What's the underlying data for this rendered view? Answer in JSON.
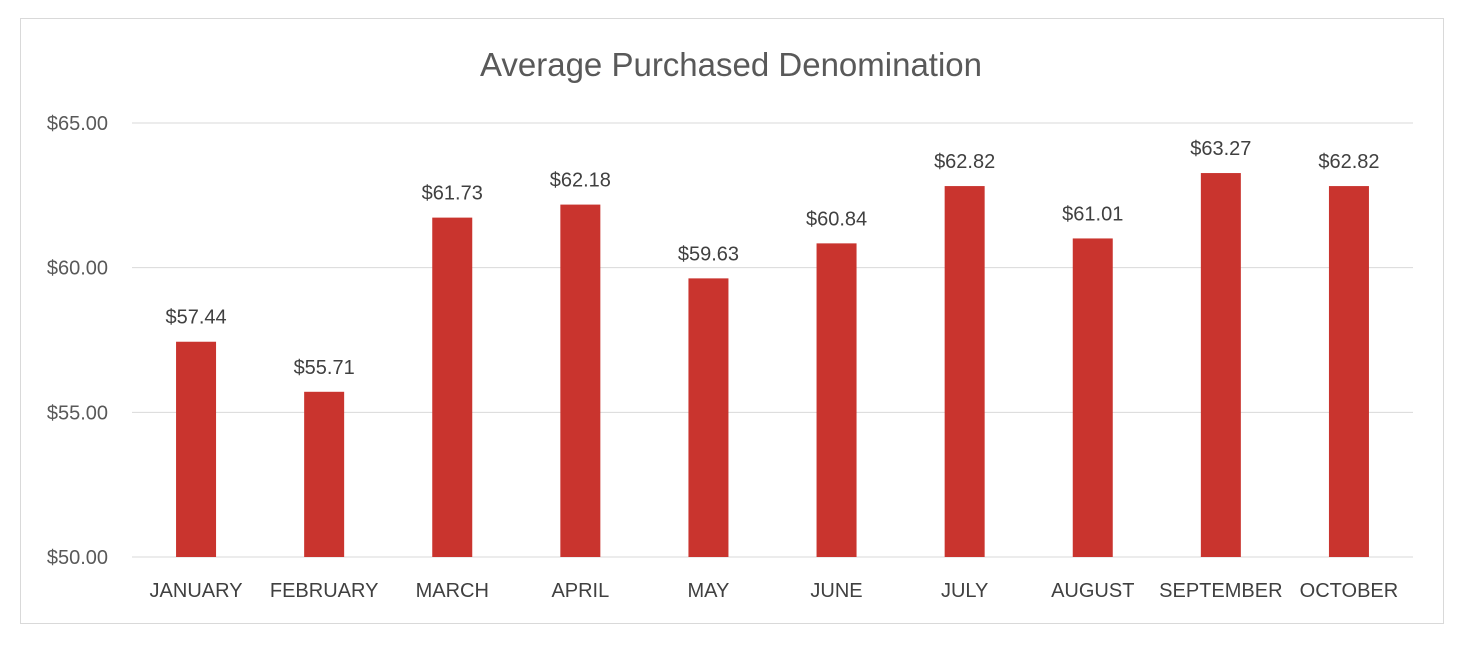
{
  "chart_data": {
    "type": "bar",
    "title": "Average Purchased Denomination",
    "xlabel": "",
    "ylabel": "",
    "categories": [
      "JANUARY",
      "FEBRUARY",
      "MARCH",
      "APRIL",
      "MAY",
      "JUNE",
      "JULY",
      "AUGUST",
      "SEPTEMBER",
      "OCTOBER"
    ],
    "values": [
      57.44,
      55.71,
      61.73,
      62.18,
      59.63,
      60.84,
      62.82,
      61.01,
      63.27,
      62.82
    ],
    "data_labels": [
      "$57.44",
      "$55.71",
      "$61.73",
      "$62.18",
      "$59.63",
      "$60.84",
      "$62.82",
      "$61.01",
      "$63.27",
      "$62.82"
    ],
    "ylim": [
      50,
      65
    ],
    "yticks": [
      50,
      55,
      60,
      65
    ],
    "ytick_labels": [
      "$50.00",
      "$55.00",
      "$60.00",
      "$65.00"
    ],
    "grid": true,
    "legend": "none",
    "bar_color": "#C9342E"
  }
}
